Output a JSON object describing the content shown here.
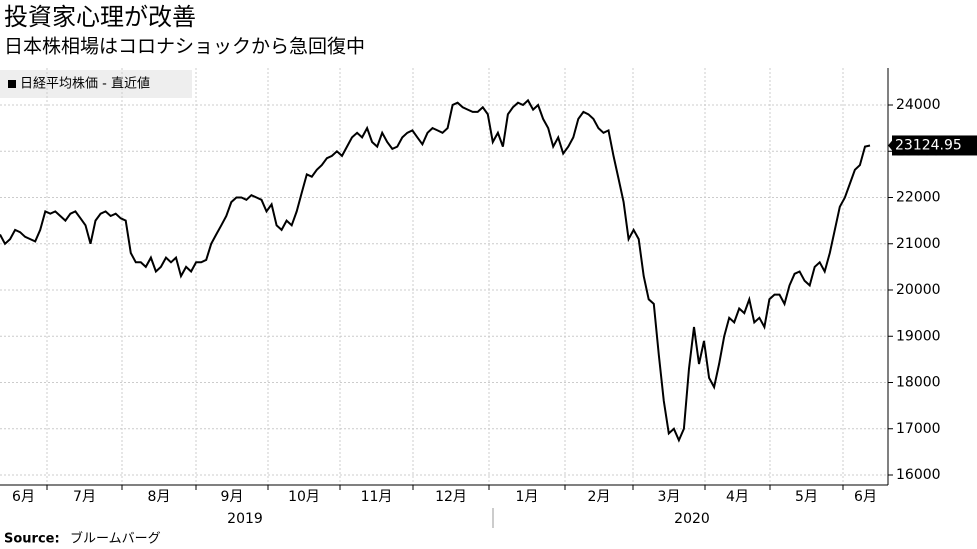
{
  "chart_data": {
    "type": "line",
    "title": "投資家心理が改善",
    "subtitle": "日本株相場はコロナショックから急回復中",
    "month_labels": [
      "6月",
      "7月",
      "8月",
      "9月",
      "10月",
      "11月",
      "12月",
      "1月",
      "2月",
      "3月",
      "4月",
      "5月",
      "6月"
    ],
    "year_labels": [
      "2019",
      "2020"
    ],
    "ylim": [
      15784,
      24800
    ],
    "yticks": [
      16000,
      17000,
      18000,
      19000,
      20000,
      21000,
      22000,
      23000,
      24000
    ],
    "grid": true,
    "series": [
      {
        "name": "日経平均株価 - 直近値",
        "color": "#000000",
        "values": [
          21200,
          21000,
          21100,
          21300,
          21250,
          21150,
          21100,
          21050,
          21300,
          21700,
          21650,
          21700,
          21600,
          21500,
          21650,
          21700,
          21550,
          21400,
          21000,
          21500,
          21650,
          21700,
          21600,
          21650,
          21550,
          21500,
          20800,
          20600,
          20600,
          20500,
          20700,
          20400,
          20500,
          20700,
          20600,
          20700,
          20300,
          20500,
          20400,
          20600,
          20600,
          20650,
          21000,
          21200,
          21400,
          21600,
          21900,
          22000,
          22000,
          21950,
          22050,
          22000,
          21950,
          21700,
          21850,
          21400,
          21300,
          21500,
          21400,
          21700,
          22100,
          22500,
          22450,
          22600,
          22700,
          22850,
          22900,
          23000,
          22900,
          23100,
          23300,
          23400,
          23300,
          23500,
          23200,
          23100,
          23400,
          23200,
          23050,
          23100,
          23300,
          23400,
          23450,
          23300,
          23150,
          23400,
          23500,
          23450,
          23400,
          23500,
          24000,
          24050,
          23950,
          23900,
          23850,
          23850,
          23950,
          23800,
          23200,
          23400,
          23100,
          23800,
          23950,
          24050,
          24000,
          24100,
          23900,
          24000,
          23700,
          23500,
          23100,
          23300,
          22950,
          23100,
          23300,
          23700,
          23850,
          23800,
          23700,
          23500,
          23400,
          23450,
          22900,
          22400,
          21900,
          21100,
          21300,
          21100,
          20300,
          19800,
          19700,
          18600,
          17600,
          16900,
          17000,
          16750,
          17000,
          18300,
          19200,
          18400,
          18900,
          18100,
          17900,
          18400,
          19000,
          19400,
          19300,
          19600,
          19500,
          19800,
          19300,
          19400,
          19200,
          19800,
          19900,
          19900,
          19700,
          20100,
          20350,
          20400,
          20200,
          20100,
          20500,
          20600,
          20400,
          20800,
          21300,
          21800,
          22000,
          22300,
          22600,
          22700,
          23100,
          23124.95
        ]
      }
    ]
  },
  "source_label": "Source:",
  "source": "ブルームバーグ"
}
